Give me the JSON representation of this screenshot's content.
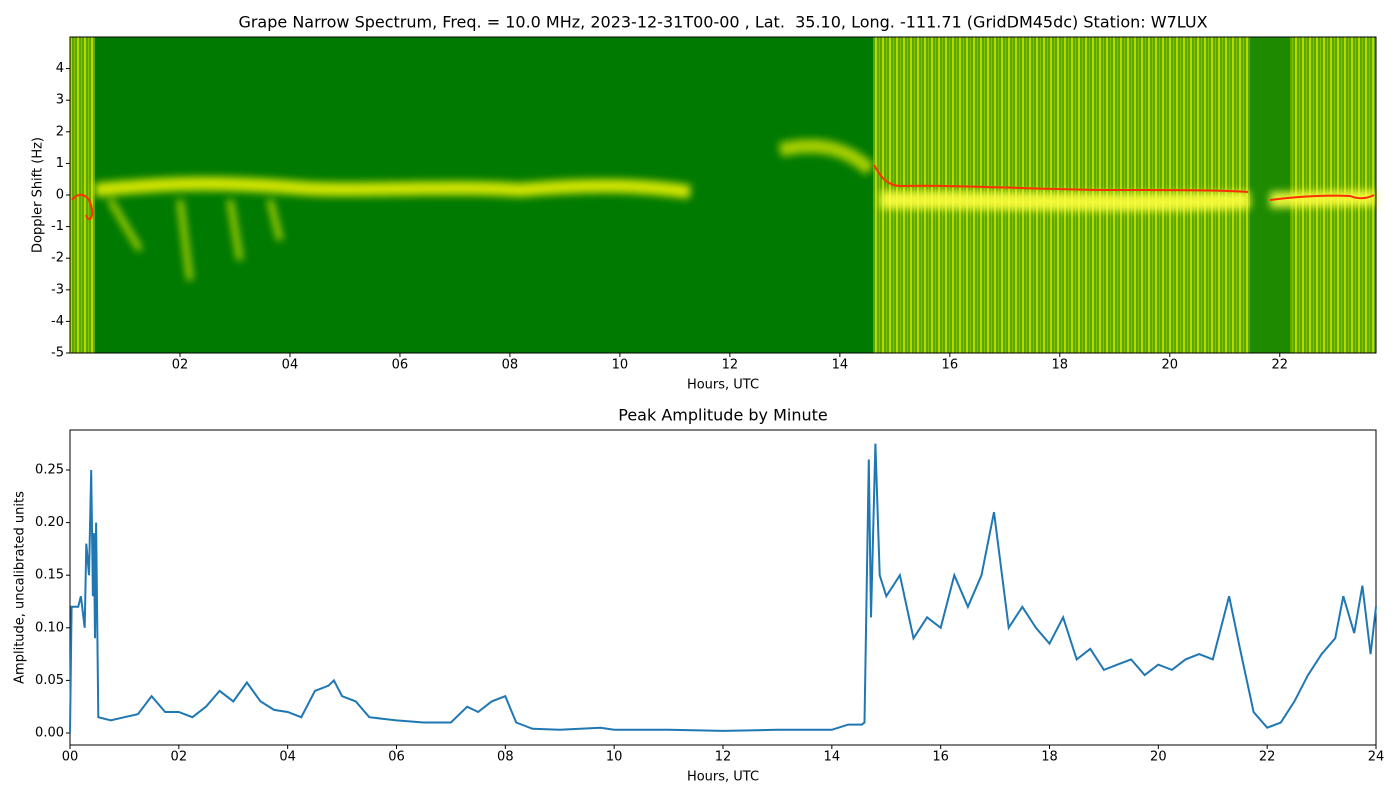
{
  "chart_data": [
    {
      "type": "spectrogram",
      "title": "Grape Narrow Spectrum, Freq. = 10.0 MHz, 2023-12-31T00-00 , Lat.  35.10, Long. -111.71 (GridDM45dc) Station: W7LUX",
      "xlabel": "Hours, UTC",
      "ylabel": "Doppler Shift (Hz)",
      "xlim": [
        0,
        23.75
      ],
      "ylim": [
        -5,
        5
      ],
      "xticks": [
        {
          "value": 2,
          "label": "02"
        },
        {
          "value": 4,
          "label": "04"
        },
        {
          "value": 6,
          "label": "06"
        },
        {
          "value": 8,
          "label": "08"
        },
        {
          "value": 10,
          "label": "10"
        },
        {
          "value": 12,
          "label": "12"
        },
        {
          "value": 14,
          "label": "14"
        },
        {
          "value": 16,
          "label": "16"
        },
        {
          "value": 18,
          "label": "18"
        },
        {
          "value": 20,
          "label": "20"
        },
        {
          "value": 22,
          "label": "22"
        }
      ],
      "yticks": [
        -5,
        -4,
        -3,
        -2,
        -1,
        0,
        1,
        2,
        3,
        4
      ]
    },
    {
      "type": "line",
      "title": "Peak Amplitude by Minute",
      "xlabel": "Hours, UTC",
      "ylabel": "Amplitude, uncalibrated units",
      "color": "#1f77b4",
      "xlim": [
        0,
        24
      ],
      "ylim": [
        -0.0114,
        0.288
      ],
      "xticks": [
        {
          "value": 0,
          "label": "00"
        },
        {
          "value": 2,
          "label": "02"
        },
        {
          "value": 4,
          "label": "04"
        },
        {
          "value": 6,
          "label": "06"
        },
        {
          "value": 8,
          "label": "08"
        },
        {
          "value": 10,
          "label": "10"
        },
        {
          "value": 12,
          "label": "12"
        },
        {
          "value": 14,
          "label": "14"
        },
        {
          "value": 16,
          "label": "16"
        },
        {
          "value": 18,
          "label": "18"
        },
        {
          "value": 20,
          "label": "20"
        },
        {
          "value": 22,
          "label": "22"
        },
        {
          "value": 24,
          "label": "24"
        }
      ],
      "yticks": [
        {
          "value": 0,
          "label": "0.00"
        },
        0.05,
        {
          "value": 0.1,
          "label": "0.10"
        },
        0.15,
        {
          "value": 0.2,
          "label": "0.20"
        },
        0.25
      ],
      "x": [
        0,
        0.03,
        0.15,
        0.2,
        0.27,
        0.3,
        0.35,
        0.39,
        0.42,
        0.44,
        0.46,
        0.48,
        0.52,
        0.75,
        1.0,
        1.25,
        1.5,
        1.75,
        2.0,
        2.25,
        2.5,
        2.75,
        3.0,
        3.25,
        3.5,
        3.75,
        4.0,
        4.25,
        4.5,
        4.75,
        4.85,
        5.0,
        5.25,
        5.5,
        6.0,
        6.5,
        7.0,
        7.3,
        7.5,
        7.75,
        8.0,
        8.2,
        8.5,
        9.0,
        9.75,
        10.0,
        11.0,
        12.0,
        13.0,
        14.0,
        14.3,
        14.55,
        14.6,
        14.68,
        14.72,
        14.8,
        14.88,
        15.0,
        15.25,
        15.5,
        15.75,
        16.0,
        16.25,
        16.5,
        16.75,
        16.98,
        17.25,
        17.5,
        17.75,
        18.0,
        18.25,
        18.5,
        18.75,
        19.0,
        19.25,
        19.5,
        19.75,
        20.0,
        20.25,
        20.5,
        20.75,
        21.0,
        21.3,
        21.5,
        21.75,
        22.0,
        22.25,
        22.5,
        22.75,
        23.0,
        23.25,
        23.4,
        23.6,
        23.75,
        23.9,
        24.0
      ],
      "values": [
        0.0,
        0.12,
        0.12,
        0.13,
        0.1,
        0.18,
        0.15,
        0.25,
        0.13,
        0.19,
        0.09,
        0.2,
        0.015,
        0.012,
        0.015,
        0.018,
        0.035,
        0.02,
        0.02,
        0.015,
        0.025,
        0.04,
        0.03,
        0.048,
        0.03,
        0.022,
        0.02,
        0.015,
        0.04,
        0.045,
        0.05,
        0.035,
        0.03,
        0.015,
        0.012,
        0.01,
        0.01,
        0.025,
        0.02,
        0.03,
        0.035,
        0.01,
        0.004,
        0.003,
        0.005,
        0.003,
        0.003,
        0.002,
        0.003,
        0.003,
        0.008,
        0.008,
        0.01,
        0.26,
        0.11,
        0.275,
        0.15,
        0.13,
        0.15,
        0.09,
        0.11,
        0.1,
        0.15,
        0.12,
        0.15,
        0.21,
        0.1,
        0.12,
        0.1,
        0.085,
        0.11,
        0.07,
        0.08,
        0.06,
        0.065,
        0.07,
        0.055,
        0.065,
        0.06,
        0.07,
        0.075,
        0.07,
        0.13,
        0.08,
        0.02,
        0.005,
        0.01,
        0.03,
        0.055,
        0.075,
        0.09,
        0.13,
        0.095,
        0.14,
        0.075,
        0.12
      ]
    }
  ]
}
